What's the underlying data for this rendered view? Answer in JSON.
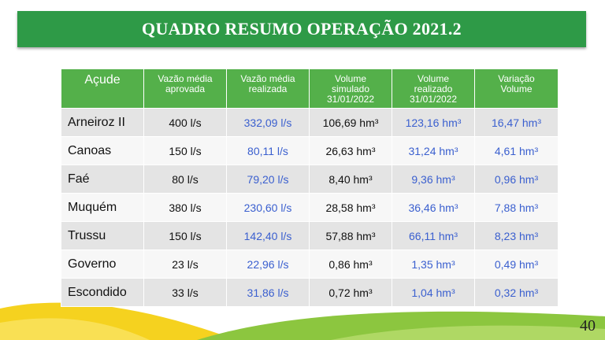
{
  "title": "QUADRO RESUMO OPERAÇÃO 2021.2",
  "headers": [
    "Açude",
    "Vazão média\naprovada",
    "Vazão média\nrealizada",
    "Volume\nsimulado\n31/01/2022",
    "Volume\nrealizado\n31/01/2022",
    "Variação\nVolume"
  ],
  "rows": [
    [
      "Arneiroz II",
      "400 l/s",
      "332,09 l/s",
      "106,69 hm³",
      "123,16 hm³",
      "16,47 hm³"
    ],
    [
      "Canoas",
      "150 l/s",
      "80,11 l/s",
      "26,63 hm³",
      "31,24 hm³",
      "4,61 hm³"
    ],
    [
      "Faé",
      "80 l/s",
      "79,20 l/s",
      "8,40 hm³",
      "9,36 hm³",
      "0,96 hm³"
    ],
    [
      "Muquém",
      "380 l/s",
      "230,60 l/s",
      "28,58 hm³",
      "36,46 hm³",
      "7,88 hm³"
    ],
    [
      "Trussu",
      "150 l/s",
      "142,40 l/s",
      "57,88 hm³",
      "66,11 hm³",
      "8,23 hm³"
    ],
    [
      "Governo",
      "23 l/s",
      "22,96 l/s",
      "0,86 hm³",
      "1,35 hm³",
      "0,49 hm³"
    ],
    [
      "Escondido",
      "33 l/s",
      "31,86 l/s",
      "0,72 hm³",
      "1,04 hm³",
      "0,32 hm³"
    ]
  ],
  "page_number": "40",
  "colors": {
    "title_bar": "#2e9a47",
    "header": "#54b04a",
    "blue_text": "#3a5fcf",
    "yellow_wave": "#f5d21f",
    "green_wave": "#8cc63f"
  }
}
